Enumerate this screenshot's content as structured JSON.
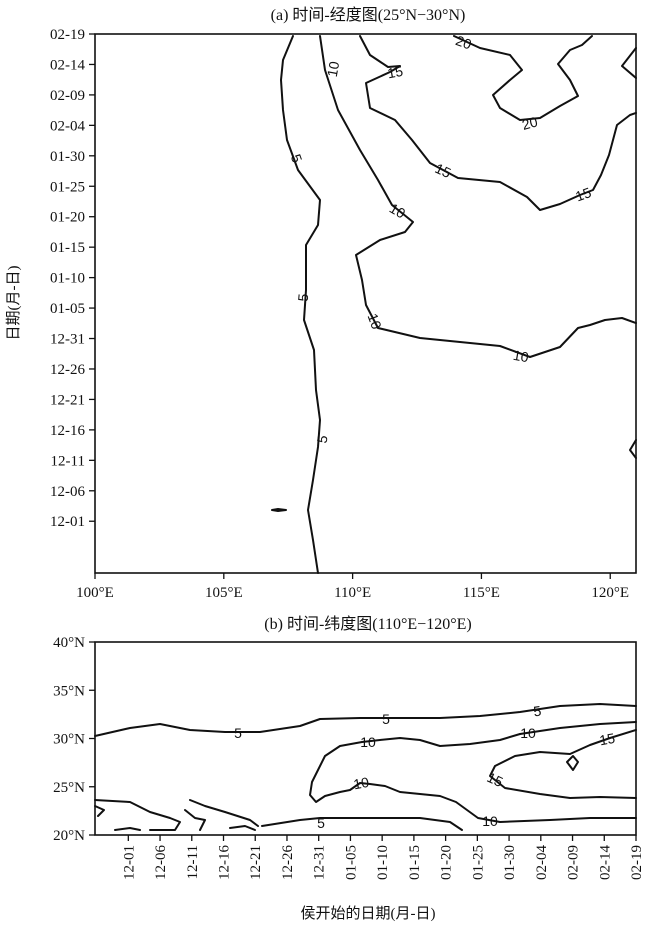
{
  "chart_data": [
    {
      "type": "contour",
      "title": "(a) 时间-经度图(25°N−30°N)",
      "xlabel": "",
      "ylabel": "日期(月-日)",
      "xlim": [
        100,
        121
      ],
      "ylim_dates": [
        "11-26",
        "02-19"
      ],
      "x_ticks": [
        "100°E",
        "105°E",
        "110°E",
        "115°E",
        "120°E"
      ],
      "y_ticks": [
        "12-01",
        "12-06",
        "12-11",
        "12-16",
        "12-21",
        "12-26",
        "12-31",
        "01-05",
        "01-10",
        "01-15",
        "01-20",
        "01-25",
        "01-30",
        "02-04",
        "02-09",
        "02-14",
        "02-19"
      ],
      "contour_levels": [
        5,
        10,
        15,
        20
      ],
      "contour_labels": [
        "10",
        "15",
        "20",
        "20",
        "5",
        "10",
        "15",
        "15",
        "5",
        "10",
        "10",
        "5"
      ]
    },
    {
      "type": "contour",
      "title": "(b) 时间-纬度图(110°E−120°E)",
      "xlabel": "侯开始的日期(月-日)",
      "ylabel": "",
      "ylim": [
        20,
        40
      ],
      "x_ticks": [
        "12-01",
        "12-06",
        "12-11",
        "12-16",
        "12-21",
        "12-26",
        "12-31",
        "01-05",
        "01-10",
        "01-15",
        "01-20",
        "01-25",
        "01-30",
        "02-04",
        "02-09",
        "02-14",
        "02-19"
      ],
      "y_ticks": [
        "20°N",
        "25°N",
        "30°N",
        "35°N",
        "40°N"
      ],
      "contour_levels": [
        5,
        10,
        15
      ],
      "contour_labels": [
        "5",
        "5",
        "5",
        "10",
        "10",
        "15",
        "10",
        "15",
        "5",
        "10"
      ]
    }
  ]
}
